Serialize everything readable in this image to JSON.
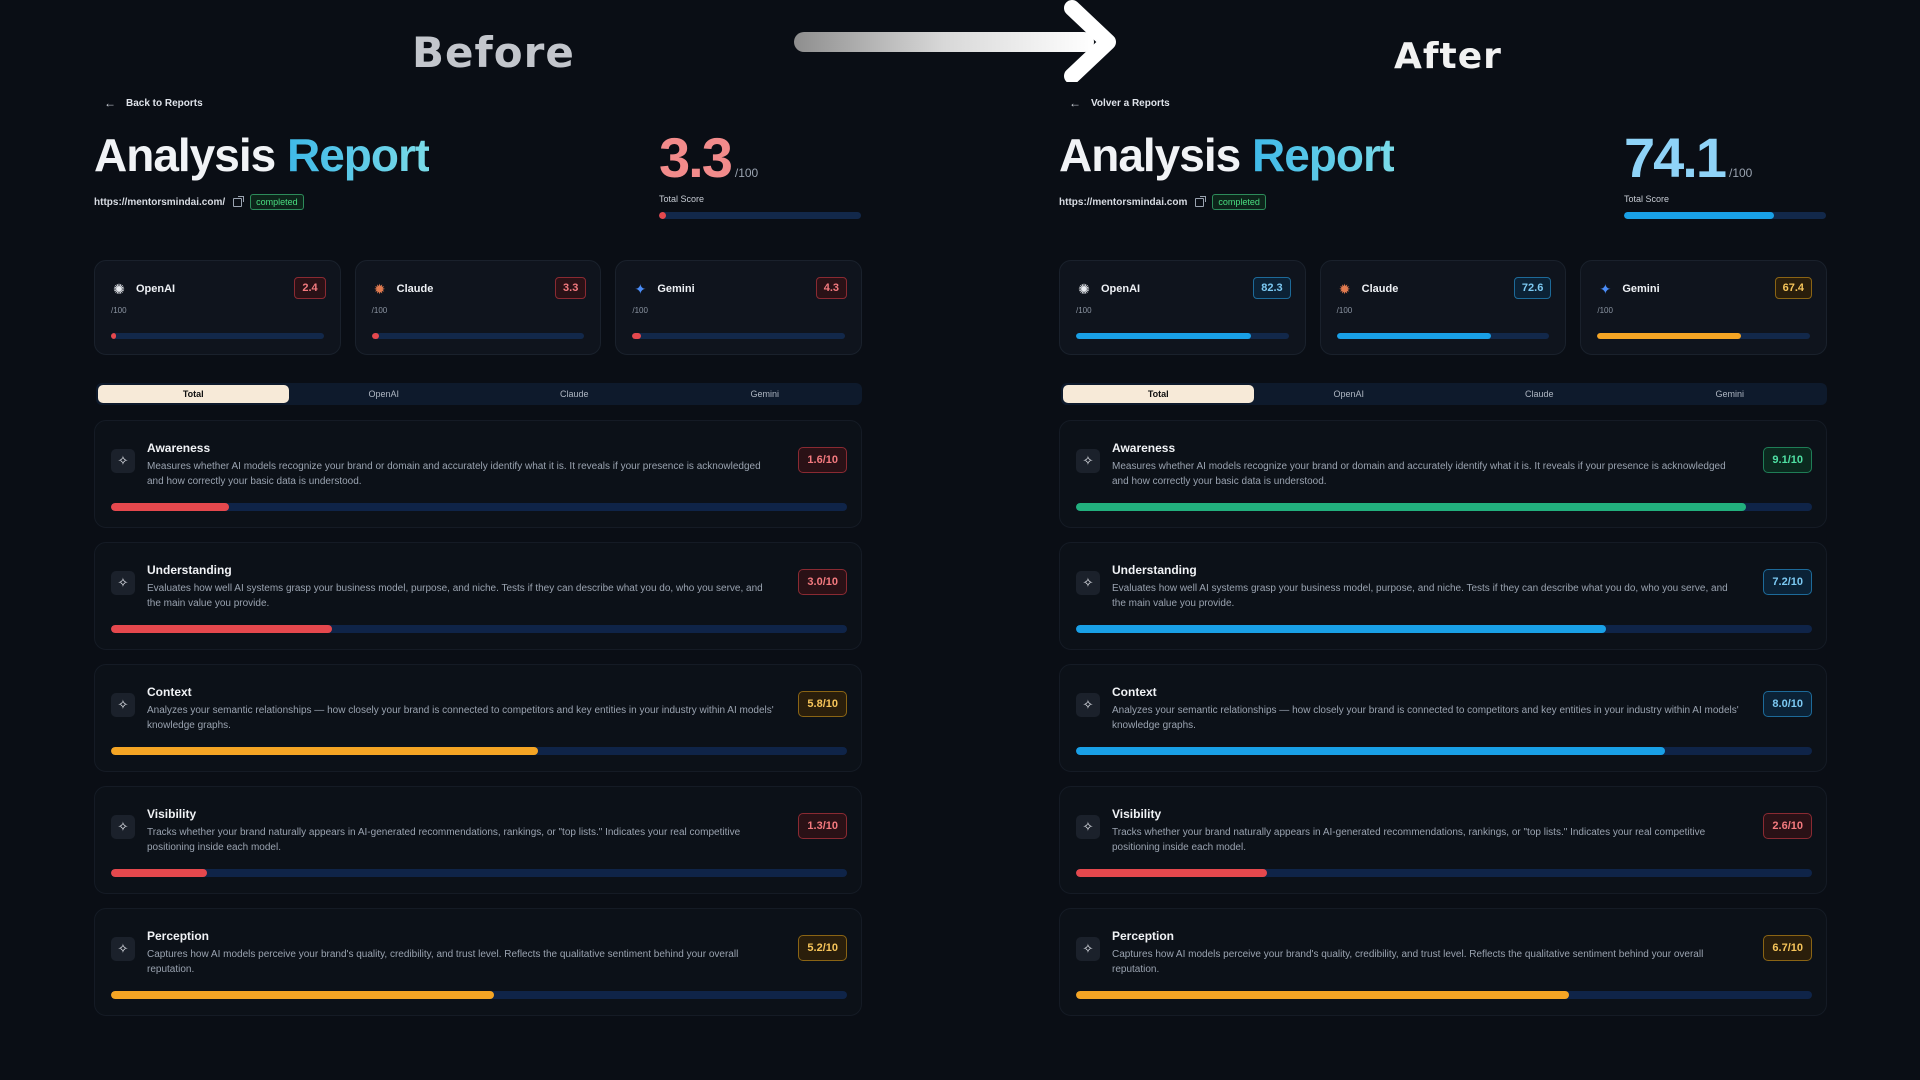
{
  "header": {
    "before_label": "Before",
    "after_label": "After"
  },
  "colors": {
    "red": "#e5484d",
    "amber": "#f5a524",
    "blue": "#19a0e6",
    "green": "#22b07d",
    "red_badge_bg": "#2a1116",
    "red_badge_border": "#8a2a32",
    "red_text": "#f47a7f",
    "amber_badge_bg": "#2a1e0b",
    "amber_badge_border": "#8a6414",
    "amber_text": "#f7c55a",
    "blue_badge_bg": "#0b2236",
    "blue_badge_border": "#1d6a99",
    "blue_text": "#7cc9f2",
    "green_badge_bg": "#0b2a1f",
    "green_badge_border": "#1f7d56",
    "green_text": "#4fe0a3"
  },
  "before": {
    "back_label": "Back to Reports",
    "title_part1": "Analysis",
    "title_part2": "Report",
    "url": "https://mentorsmindai.com/",
    "status": "completed",
    "total_score": "3.3",
    "total_score_value": 3.3,
    "total_color": "#f28b8b",
    "total_bar_color": "#e5484d",
    "score_den": "/100",
    "score_label": "Total Score",
    "models": [
      {
        "name": "OpenAI",
        "icon": "openai-icon",
        "score": "2.4",
        "value": 2.4,
        "sub": "/100",
        "tone": "red"
      },
      {
        "name": "Claude",
        "icon": "claude-icon",
        "score": "3.3",
        "value": 3.3,
        "sub": "/100",
        "tone": "red"
      },
      {
        "name": "Gemini",
        "icon": "gemini-icon",
        "score": "4.3",
        "value": 4.3,
        "sub": "/100",
        "tone": "red"
      }
    ],
    "tabs": [
      "Total",
      "OpenAI",
      "Claude",
      "Gemini"
    ],
    "active_tab": 0,
    "metrics": [
      {
        "name": "Awareness",
        "desc": "Measures whether AI models recognize your brand or domain and accurately identify what it is. It reveals if your presence is acknowledged and how correctly your basic data is understood.",
        "score": "1.6/10",
        "value": 1.6,
        "tone": "red"
      },
      {
        "name": "Understanding",
        "desc": "Evaluates how well AI systems grasp your business model, purpose, and niche. Tests if they can describe what you do, who you serve, and the main value you provide.",
        "score": "3.0/10",
        "value": 3.0,
        "tone": "red"
      },
      {
        "name": "Context",
        "desc": "Analyzes your semantic relationships — how closely your brand is connected to competitors and key entities in your industry within AI models' knowledge graphs.",
        "score": "5.8/10",
        "value": 5.8,
        "tone": "amber"
      },
      {
        "name": "Visibility",
        "desc": "Tracks whether your brand naturally appears in AI-generated recommendations, rankings, or \"top lists.\" Indicates your real competitive positioning inside each model.",
        "score": "1.3/10",
        "value": 1.3,
        "tone": "red"
      },
      {
        "name": "Perception",
        "desc": "Captures how AI models perceive your brand's quality, credibility, and trust level. Reflects the qualitative sentiment behind your overall reputation.",
        "score": "5.2/10",
        "value": 5.2,
        "tone": "amber"
      }
    ]
  },
  "after": {
    "back_label": "Volver a Reports",
    "title_part1": "Analysis",
    "title_part2": "Report",
    "url": "https://mentorsmindai.com",
    "status": "completed",
    "total_score": "74.1",
    "total_score_value": 74.1,
    "total_color": "#8fd3f7",
    "total_bar_color": "#19a0e6",
    "score_den": "/100",
    "score_label": "Total Score",
    "models": [
      {
        "name": "OpenAI",
        "icon": "openai-icon",
        "score": "82.3",
        "value": 82.3,
        "sub": "/100",
        "tone": "blue"
      },
      {
        "name": "Claude",
        "icon": "claude-icon",
        "score": "72.6",
        "value": 72.6,
        "sub": "/100",
        "tone": "blue"
      },
      {
        "name": "Gemini",
        "icon": "gemini-icon",
        "score": "67.4",
        "value": 67.4,
        "sub": "/100",
        "tone": "amber"
      }
    ],
    "tabs": [
      "Total",
      "OpenAI",
      "Claude",
      "Gemini"
    ],
    "active_tab": 0,
    "metrics": [
      {
        "name": "Awareness",
        "desc": "Measures whether AI models recognize your brand or domain and accurately identify what it is. It reveals if your presence is acknowledged and how correctly your basic data is understood.",
        "score": "9.1/10",
        "value": 9.1,
        "tone": "green"
      },
      {
        "name": "Understanding",
        "desc": "Evaluates how well AI systems grasp your business model, purpose, and niche. Tests if they can describe what you do, who you serve, and the main value you provide.",
        "score": "7.2/10",
        "value": 7.2,
        "tone": "blue"
      },
      {
        "name": "Context",
        "desc": "Analyzes your semantic relationships — how closely your brand is connected to competitors and key entities in your industry within AI models' knowledge graphs.",
        "score": "8.0/10",
        "value": 8.0,
        "tone": "blue"
      },
      {
        "name": "Visibility",
        "desc": "Tracks whether your brand naturally appears in AI-generated recommendations, rankings, or \"top lists.\" Indicates your real competitive positioning inside each model.",
        "score": "2.6/10",
        "value": 2.6,
        "tone": "red"
      },
      {
        "name": "Perception",
        "desc": "Captures how AI models perceive your brand's quality, credibility, and trust level. Reflects the qualitative sentiment behind your overall reputation.",
        "score": "6.7/10",
        "value": 6.7,
        "tone": "amber"
      }
    ]
  }
}
